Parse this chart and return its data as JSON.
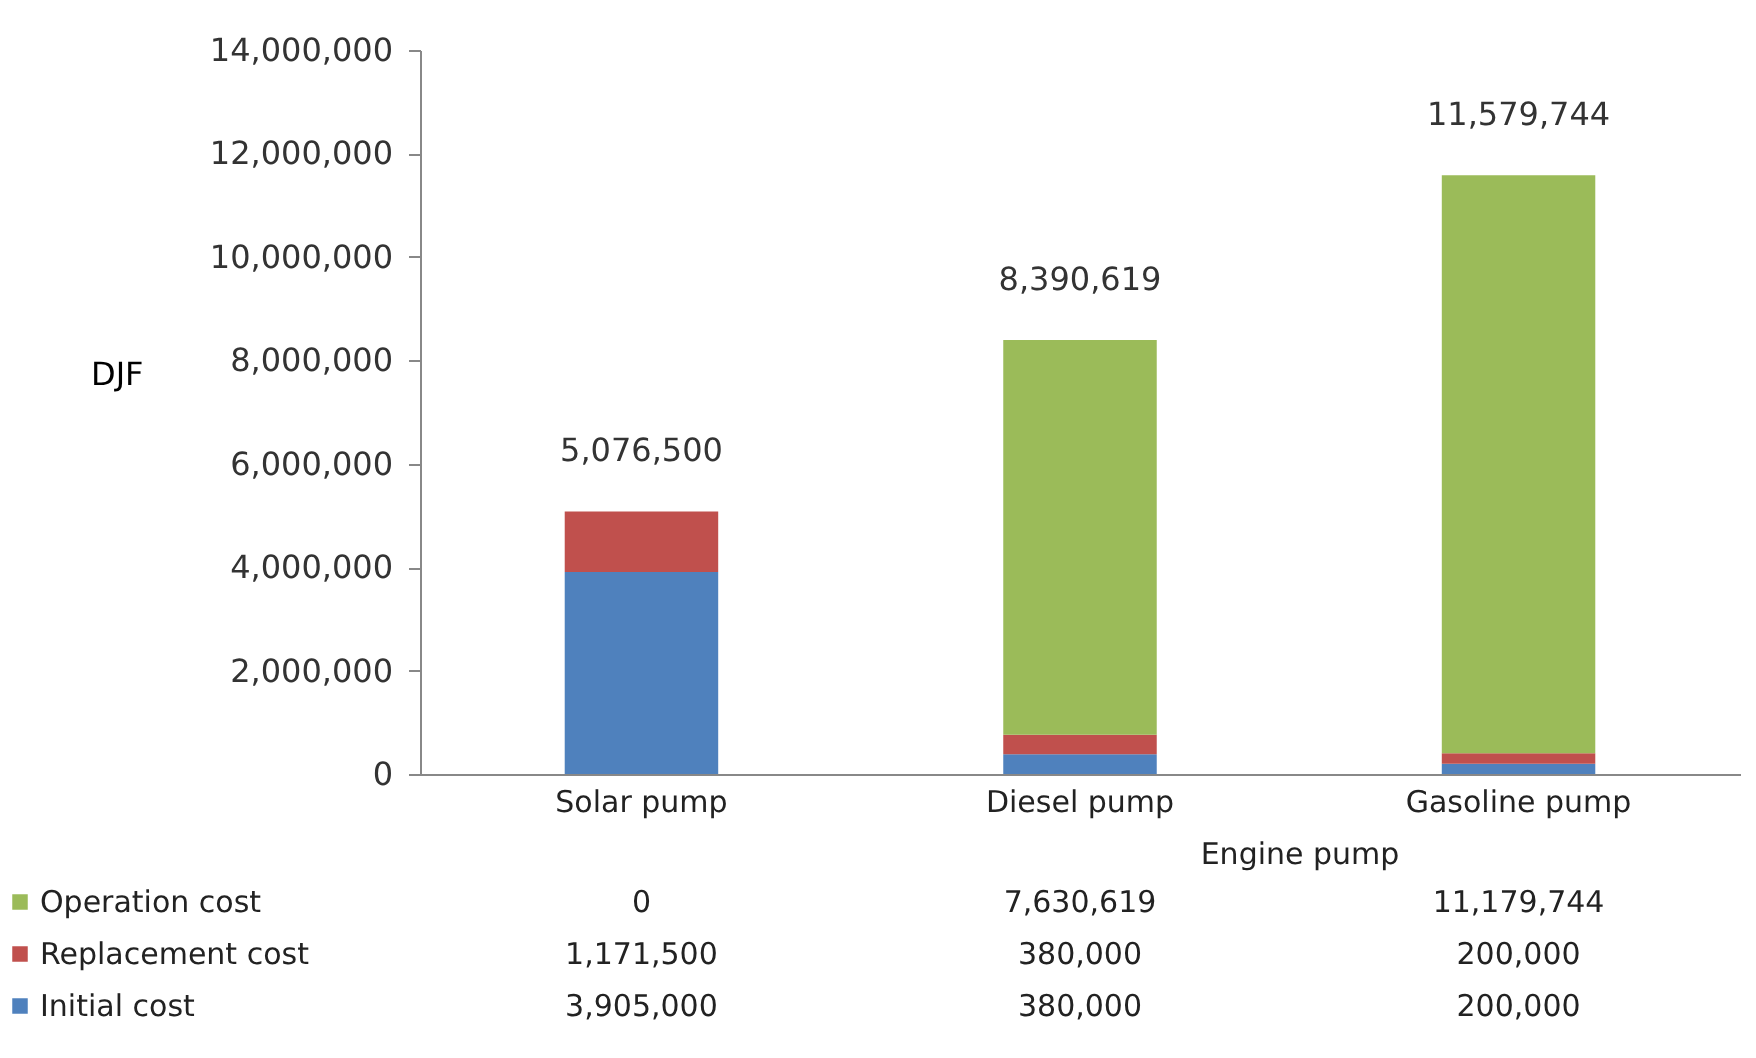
{
  "chart_data": {
    "type": "bar",
    "stacked": true,
    "ylabel": "DJF",
    "categories": [
      "Solar pump",
      "Diesel pump",
      "Gasoline pump"
    ],
    "series": [
      {
        "name": "Initial cost",
        "color": "#4f81bd",
        "values": [
          3905000,
          380000,
          200000
        ],
        "value_labels": [
          "3,905,000",
          "380,000",
          "200,000"
        ]
      },
      {
        "name": "Replacement cost",
        "color": "#c0504d",
        "values": [
          1171500,
          380000,
          200000
        ],
        "value_labels": [
          "1,171,500",
          "380,000",
          "200,000"
        ]
      },
      {
        "name": "Operation cost",
        "color": "#9bbb59",
        "values": [
          0,
          7630619,
          11179744
        ],
        "value_labels": [
          "0",
          "7,630,619",
          "11,179,744"
        ]
      }
    ],
    "totals": [
      "5,076,500",
      "8,390,619",
      "11,579,744"
    ],
    "annotations": [
      "Engine pump"
    ],
    "ylim": [
      0,
      14000000
    ],
    "yticks": [
      0,
      {
        "value": 2000000,
        "label": "2,000,000"
      },
      {
        "value": 4000000,
        "label": "4,000,000"
      },
      {
        "value": 6000000,
        "label": "6,000,000"
      },
      {
        "value": 8000000,
        "label": "8,000,000"
      },
      {
        "value": 10000000,
        "label": "10,000,000"
      },
      {
        "value": 12000000,
        "label": "12,000,000"
      },
      {
        "value": 14000000,
        "label": "14,000,000"
      }
    ],
    "grid": false,
    "legend": "bottom"
  }
}
